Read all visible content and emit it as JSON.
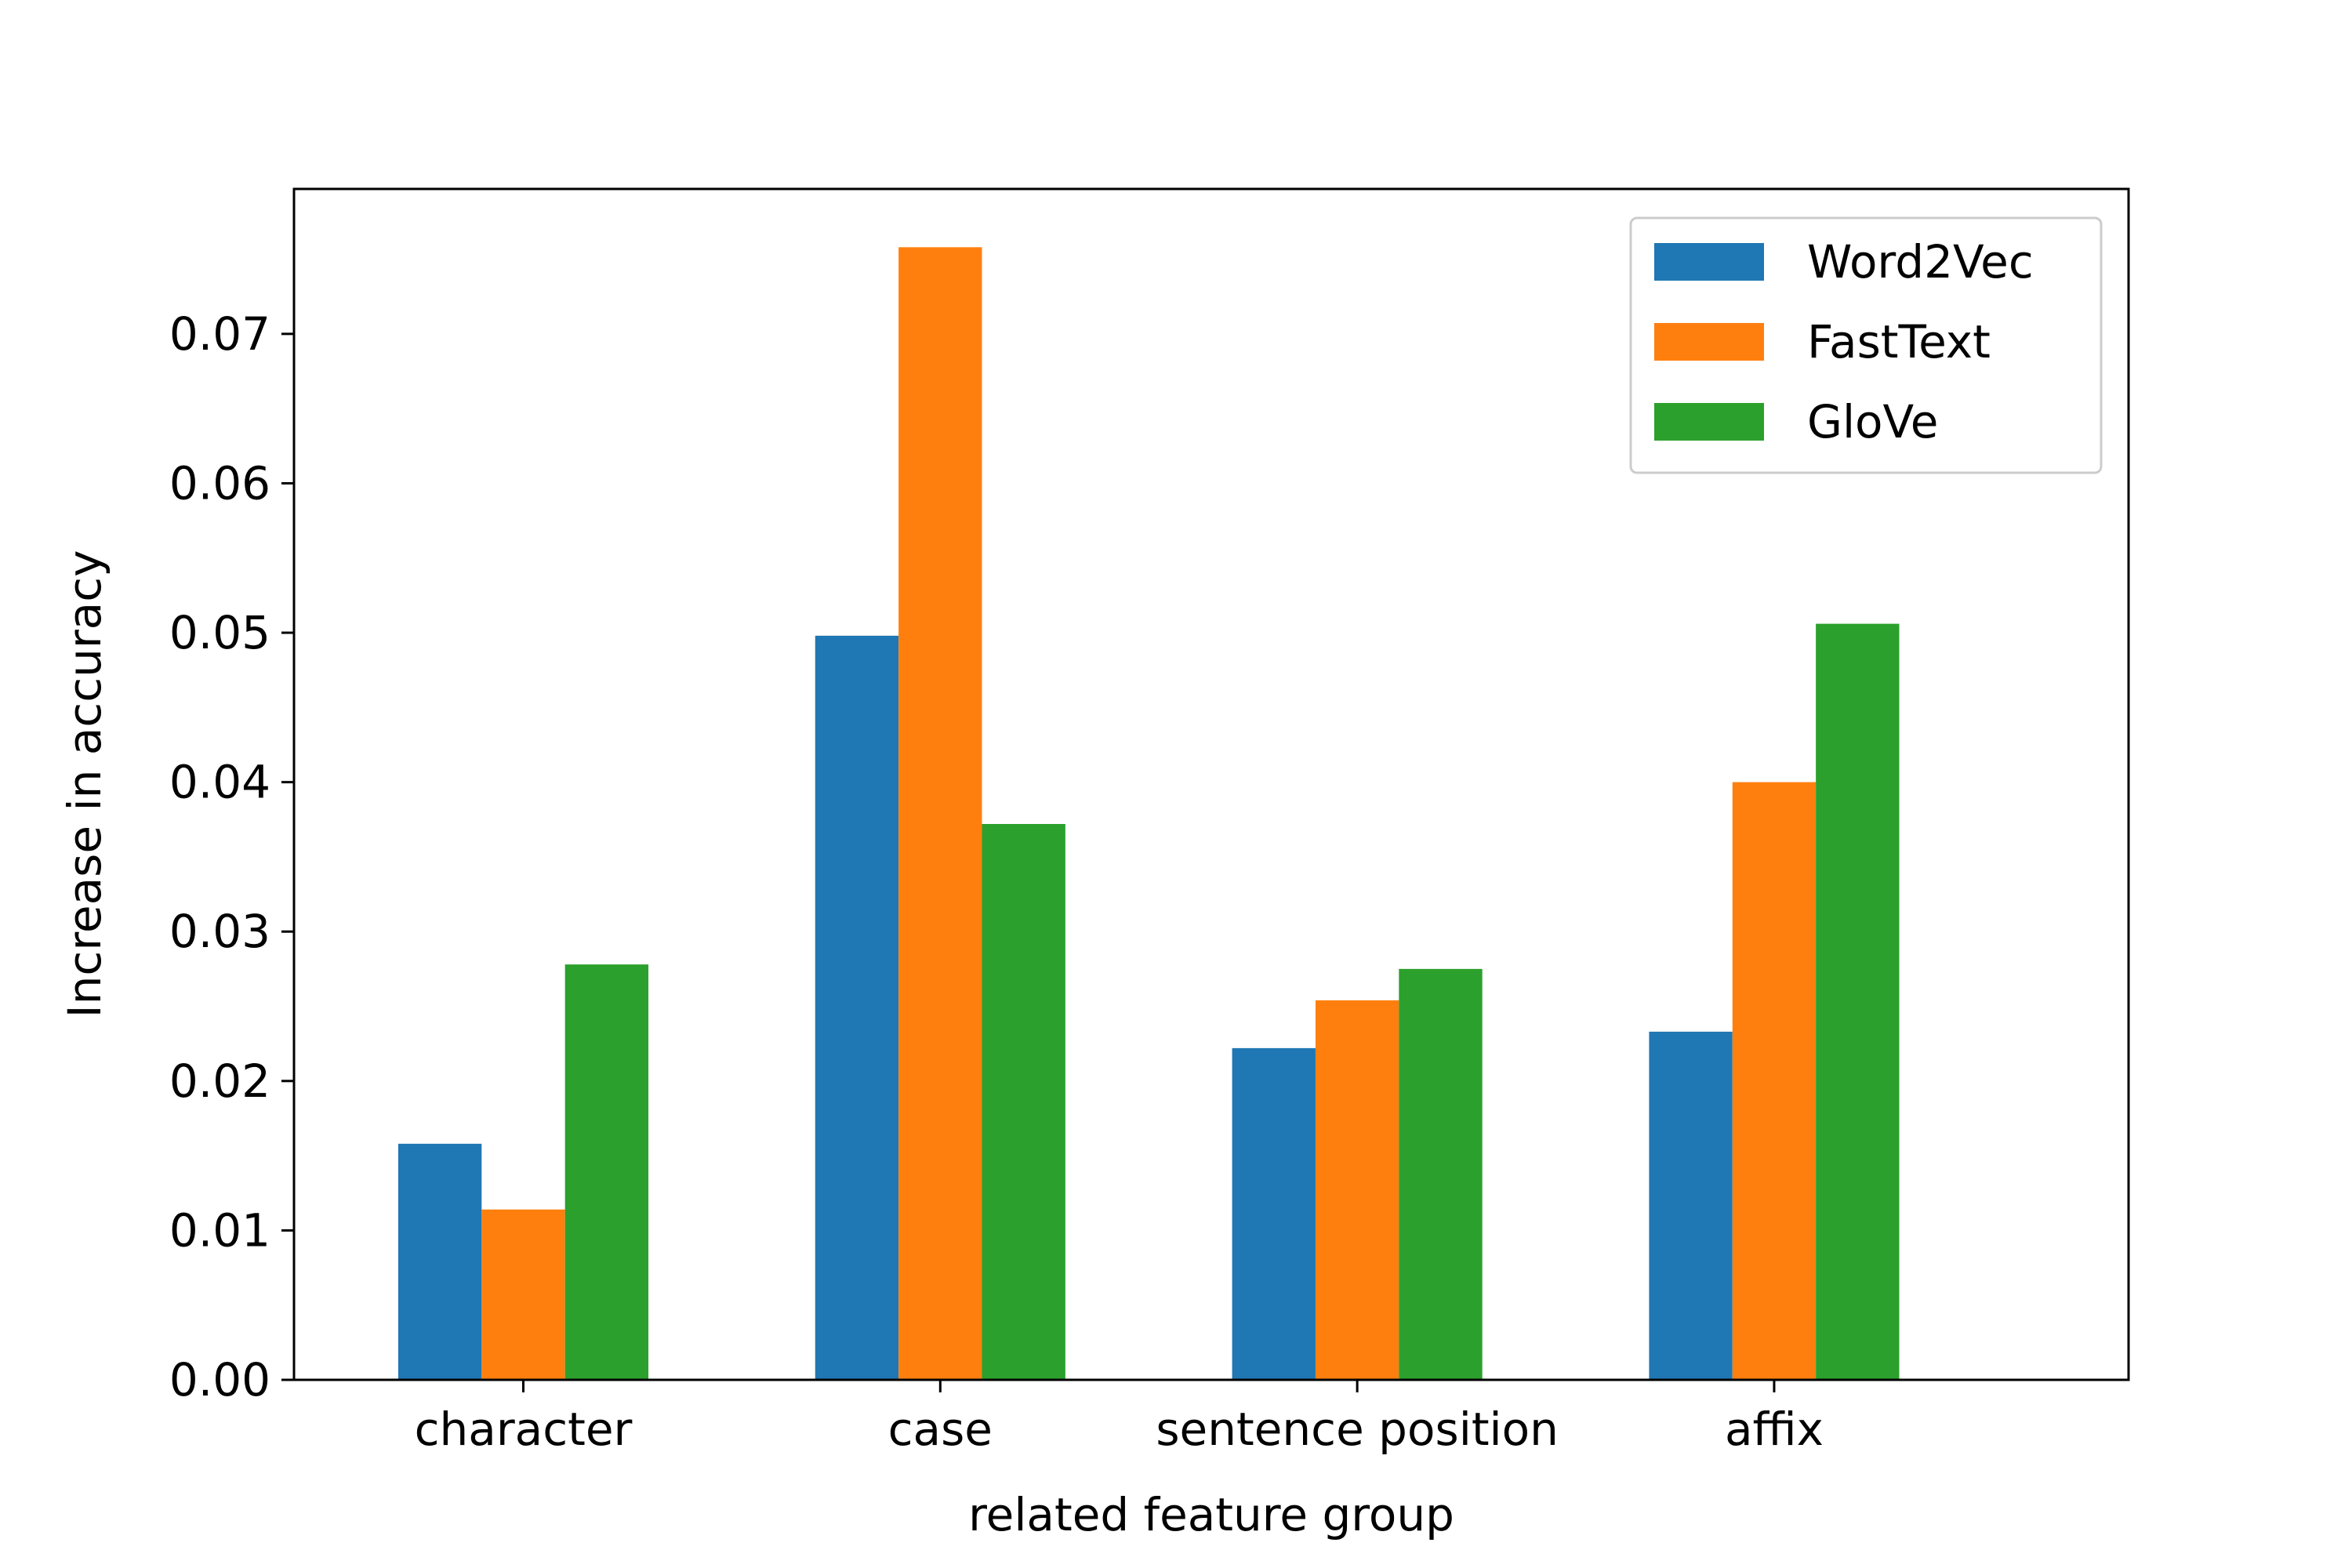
{
  "chart_data": {
    "type": "bar",
    "categories": [
      "character",
      "case",
      "sentence position",
      "affix"
    ],
    "series": [
      {
        "name": "Word2Vec",
        "color": "#1f77b4",
        "values": [
          0.0158,
          0.0498,
          0.0222,
          0.0233
        ]
      },
      {
        "name": "FastText",
        "color": "#ff7f0e",
        "values": [
          0.0114,
          0.0758,
          0.0254,
          0.04
        ]
      },
      {
        "name": "GloVe",
        "color": "#2ca02c",
        "values": [
          0.0278,
          0.0372,
          0.0275,
          0.0506
        ]
      }
    ],
    "xlabel": "related feature group",
    "ylabel": "Increase in accuracy",
    "ylim": [
      0,
      0.0797
    ],
    "yticks": [
      "0.00",
      "0.01",
      "0.02",
      "0.03",
      "0.04",
      "0.05",
      "0.06",
      "0.07"
    ],
    "ytick_values": [
      0,
      0.01,
      0.02,
      0.03,
      0.04,
      0.05,
      0.06,
      0.07
    ],
    "legend_position": "top-right",
    "grid": false
  }
}
